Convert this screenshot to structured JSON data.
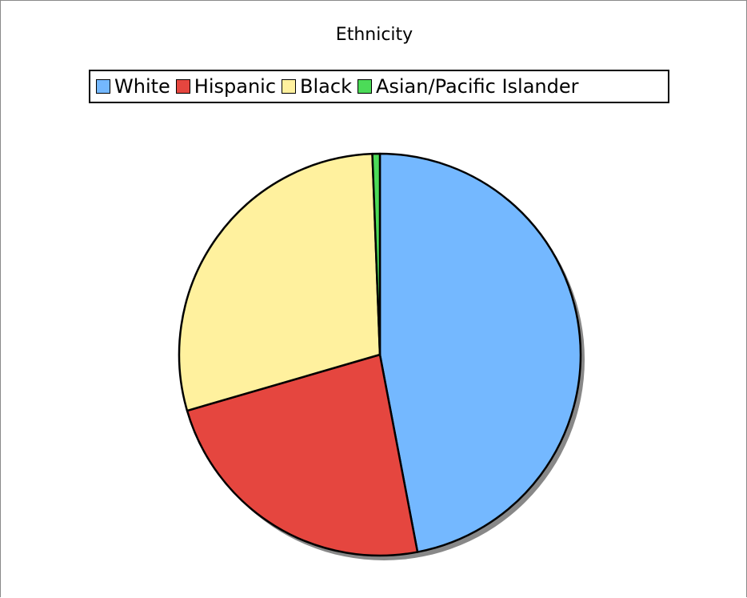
{
  "chart_data": {
    "type": "pie",
    "title": "Ethnicity",
    "legend_position": "top-center",
    "categories": [
      "White",
      "Hispanic",
      "Black",
      "Asian/Pacific Islander"
    ],
    "values": [
      47.0,
      23.5,
      28.9,
      0.6
    ],
    "colors": [
      "#74B8FF",
      "#E5463F",
      "#FFF19E",
      "#4CDB58"
    ],
    "start_angle_deg": -90,
    "direction": "clockwise",
    "shadow": true
  }
}
